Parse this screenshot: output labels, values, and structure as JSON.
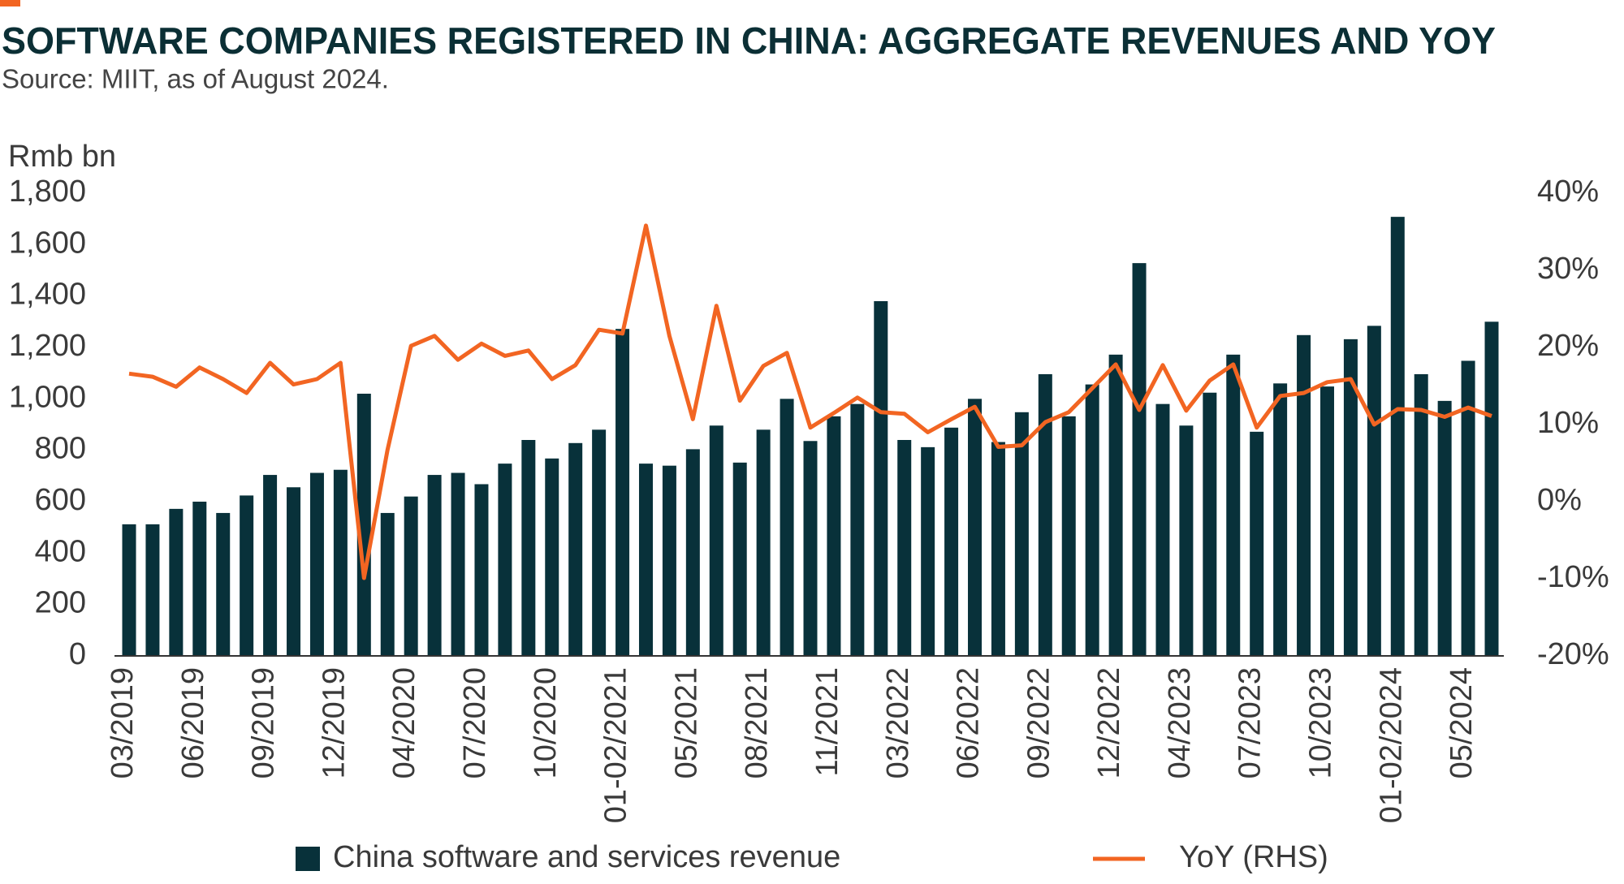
{
  "chart_data": {
    "type": "bar",
    "title": "SOFTWARE COMPANIES REGISTERED IN CHINA: AGGREGATE REVENUES AND YOY",
    "subtitle": "Source: MIIT, as of August 2024.",
    "ylabel": "Rmb bn",
    "categories": [
      "03/2019",
      null,
      null,
      "06/2019",
      null,
      null,
      "09/2019",
      null,
      null,
      "12/2019",
      null,
      null,
      "04/2020",
      null,
      null,
      "07/2020",
      null,
      null,
      "10/2020",
      null,
      null,
      "01-02/2021",
      null,
      null,
      "05/2021",
      null,
      null,
      "08/2021",
      null,
      null,
      "11/2021",
      null,
      null,
      "03/2022",
      null,
      null,
      "06/2022",
      null,
      null,
      "09/2022",
      null,
      null,
      "12/2022",
      null,
      null,
      "04/2023",
      null,
      null,
      "07/2023",
      null,
      null,
      "10/2023",
      null,
      null,
      "01-02/2024",
      null,
      null,
      "05/2024",
      null
    ],
    "series": [
      {
        "name": "China software and services revenue",
        "type": "bar",
        "color": "#08313a",
        "values": [
          512,
          512,
          572,
          600,
          556,
          624,
          704,
          656,
          712,
          724,
          1020,
          556,
          620,
          704,
          712,
          668,
          748,
          840,
          768,
          828,
          880,
          1272,
          748,
          740,
          804,
          896,
          752,
          880,
          1000,
          836,
          932,
          980,
          1380,
          840,
          812,
          888,
          1000,
          832,
          948,
          1096,
          932,
          1056,
          1172,
          1528,
          980,
          896,
          1024,
          1172,
          872,
          1060,
          1248,
          1048,
          1232,
          1284,
          1708,
          1096,
          992,
          1148,
          1300
        ]
      },
      {
        "name": "YoY (RHS)",
        "type": "line",
        "axis": "y2",
        "color": "#f26522",
        "values": [
          16.6,
          16.2,
          14.9,
          17.4,
          15.9,
          14.1,
          18.0,
          15.2,
          15.9,
          18.0,
          -9.9,
          6.7,
          20.2,
          21.5,
          18.4,
          20.5,
          18.9,
          19.6,
          15.9,
          17.7,
          22.3,
          21.8,
          35.8,
          21.5,
          10.7,
          25.4,
          13.1,
          17.6,
          19.3,
          9.6,
          11.5,
          13.5,
          11.6,
          11.4,
          9.0,
          10.7,
          12.3,
          7.1,
          7.3,
          10.3,
          11.6,
          14.7,
          17.8,
          11.9,
          17.7,
          11.8,
          15.7,
          17.8,
          9.6,
          13.7,
          14.1,
          15.5,
          15.9,
          10.0,
          12.0,
          11.9,
          11.0,
          12.2,
          11.1
        ]
      }
    ],
    "ylim": [
      0,
      1800
    ],
    "yticks": [
      0,
      200,
      400,
      600,
      800,
      {
        "value": 1000,
        "label": "1,000"
      },
      {
        "value": 1200,
        "label": "1,200"
      },
      {
        "value": 1400,
        "label": "1,400"
      },
      {
        "value": 1600,
        "label": "1,600"
      },
      {
        "value": 1800,
        "label": "1,800"
      }
    ],
    "y2lim": [
      -20,
      40
    ],
    "y2ticks": [
      {
        "value": -20,
        "label": "-20%"
      },
      {
        "value": -10,
        "label": "-10%"
      },
      {
        "value": 0,
        "label": "0%"
      },
      {
        "value": 10,
        "label": "10%"
      },
      {
        "value": 20,
        "label": "20%"
      },
      {
        "value": 30,
        "label": "30%"
      },
      {
        "value": 40,
        "label": "40%"
      }
    ],
    "grid": false,
    "legend": "bottom"
  }
}
